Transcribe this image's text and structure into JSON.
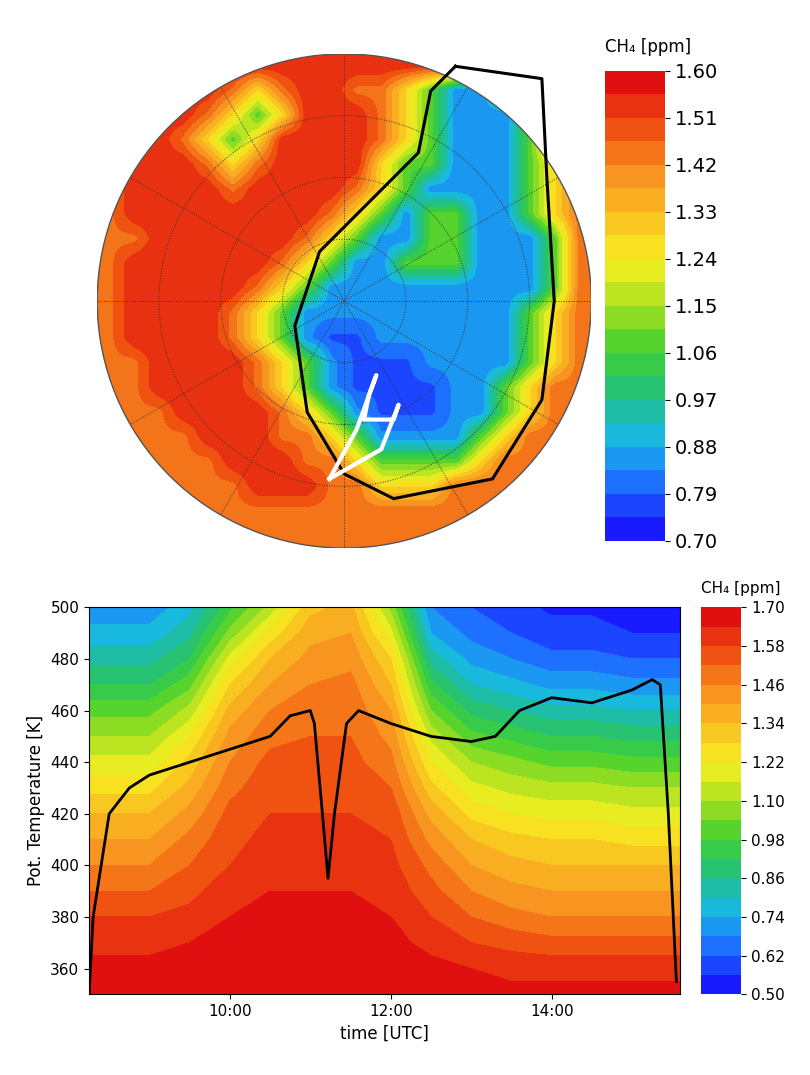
{
  "chart_data": [
    {
      "type": "map",
      "colorbar_label": "CH₄ [ppm]",
      "tick_labels": false,
      "xlim": [
        -1,
        1
      ],
      "ylim": [
        -1,
        1
      ],
      "clim": [
        0.7,
        1.6
      ],
      "cticks": [
        {
          "value": 1.6,
          "label": "1.60"
        },
        1.51,
        1.42,
        1.33,
        1.24,
        1.15,
        1.06,
        0.97,
        0.88,
        0.79,
        {
          "value": 0.7,
          "label": "0.70"
        }
      ],
      "cells": [
        [
          1.55,
          1.55,
          1.55,
          1.55,
          1.55,
          1.55,
          1.55,
          1.55,
          1.55,
          1.55,
          1.55,
          1.55,
          1.55,
          1.55,
          1.55,
          1.55,
          1.55,
          1.55,
          1.55,
          1.55
        ],
        [
          1.55,
          1.55,
          1.55,
          1.55,
          1.55,
          1.45,
          1.28,
          1.45,
          1.55,
          1.55,
          1.45,
          1.45,
          1.28,
          1.08,
          0.85,
          0.85,
          1.08,
          1.28,
          1.45,
          1.55
        ],
        [
          1.55,
          1.55,
          1.55,
          1.55,
          1.45,
          1.28,
          1.08,
          1.28,
          1.55,
          1.55,
          1.55,
          1.45,
          1.28,
          1.08,
          0.85,
          0.85,
          0.85,
          1.08,
          1.45,
          1.55
        ],
        [
          1.55,
          1.55,
          1.55,
          1.45,
          1.28,
          1.08,
          1.28,
          1.55,
          1.55,
          1.55,
          1.55,
          1.45,
          1.28,
          1.08,
          0.85,
          0.85,
          0.85,
          1.08,
          1.45,
          1.45
        ],
        [
          1.45,
          1.55,
          1.55,
          1.55,
          1.45,
          1.28,
          1.45,
          1.55,
          1.55,
          1.55,
          1.55,
          1.28,
          1.08,
          1.08,
          0.85,
          0.85,
          0.85,
          1.08,
          1.28,
          1.45
        ],
        [
          1.45,
          1.55,
          1.55,
          1.55,
          1.55,
          1.45,
          1.55,
          1.55,
          1.55,
          1.55,
          1.45,
          1.28,
          1.08,
          0.85,
          0.85,
          0.85,
          0.85,
          1.08,
          1.28,
          1.45
        ],
        [
          1.45,
          1.55,
          1.55,
          1.55,
          1.55,
          1.55,
          1.55,
          1.55,
          1.55,
          1.45,
          1.28,
          1.08,
          0.85,
          1.08,
          1.08,
          0.85,
          0.85,
          1.08,
          1.28,
          1.45
        ],
        [
          1.45,
          1.45,
          1.55,
          1.55,
          1.55,
          1.55,
          1.55,
          1.55,
          1.45,
          1.28,
          1.08,
          0.85,
          0.85,
          1.08,
          1.08,
          0.85,
          0.85,
          0.85,
          1.08,
          1.45
        ],
        [
          1.45,
          1.55,
          1.55,
          1.55,
          1.55,
          1.55,
          1.55,
          1.45,
          1.28,
          1.08,
          0.85,
          0.85,
          1.08,
          1.08,
          1.08,
          0.85,
          0.85,
          0.85,
          1.08,
          1.45
        ],
        [
          1.45,
          1.55,
          1.55,
          1.55,
          1.55,
          1.55,
          1.45,
          1.28,
          1.08,
          0.85,
          0.85,
          0.85,
          0.85,
          0.85,
          0.85,
          0.85,
          0.85,
          0.85,
          1.08,
          1.45
        ],
        [
          1.45,
          1.55,
          1.55,
          1.55,
          1.55,
          1.45,
          1.28,
          1.08,
          0.85,
          0.85,
          0.85,
          0.85,
          0.85,
          0.85,
          0.85,
          0.85,
          0.85,
          1.08,
          1.28,
          1.45
        ],
        [
          1.45,
          1.55,
          1.55,
          1.55,
          1.55,
          1.45,
          1.28,
          1.08,
          0.85,
          0.78,
          0.78,
          0.85,
          0.85,
          0.85,
          0.85,
          0.85,
          0.85,
          1.08,
          1.28,
          1.45
        ],
        [
          1.45,
          1.45,
          1.55,
          1.55,
          1.55,
          1.55,
          1.45,
          1.28,
          1.08,
          0.85,
          0.78,
          0.78,
          0.78,
          0.85,
          0.85,
          0.85,
          0.85,
          1.08,
          1.28,
          1.45
        ],
        [
          1.45,
          1.45,
          1.55,
          1.55,
          1.55,
          1.55,
          1.45,
          1.28,
          1.08,
          0.85,
          0.78,
          0.78,
          0.78,
          0.78,
          0.85,
          0.85,
          1.08,
          1.28,
          1.45,
          1.45
        ],
        [
          1.45,
          1.45,
          1.45,
          1.55,
          1.55,
          1.55,
          1.55,
          1.45,
          1.28,
          1.08,
          0.85,
          0.78,
          0.78,
          0.78,
          0.85,
          0.85,
          1.08,
          1.28,
          1.45,
          1.45
        ],
        [
          1.45,
          1.45,
          1.45,
          1.45,
          1.55,
          1.55,
          1.55,
          1.45,
          1.45,
          1.28,
          1.08,
          0.85,
          0.85,
          0.85,
          0.85,
          1.08,
          1.28,
          1.45,
          1.45,
          1.45
        ],
        [
          1.45,
          1.45,
          1.45,
          1.45,
          1.45,
          1.55,
          1.55,
          1.55,
          1.45,
          1.45,
          1.28,
          1.08,
          1.08,
          1.08,
          1.08,
          1.28,
          1.45,
          1.45,
          1.45,
          1.45
        ],
        [
          1.45,
          1.45,
          1.45,
          1.45,
          1.45,
          1.45,
          1.55,
          1.55,
          1.55,
          1.45,
          1.45,
          1.28,
          1.28,
          1.28,
          1.45,
          1.45,
          1.45,
          1.45,
          1.45,
          1.45
        ],
        [
          1.45,
          1.45,
          1.45,
          1.45,
          1.45,
          1.45,
          1.45,
          1.45,
          1.45,
          1.45,
          1.45,
          1.45,
          1.45,
          1.45,
          1.45,
          1.45,
          1.45,
          1.45,
          1.45,
          1.45
        ],
        [
          1.45,
          1.45,
          1.45,
          1.45,
          1.45,
          1.45,
          1.45,
          1.45,
          1.45,
          1.45,
          1.45,
          1.45,
          1.45,
          1.45,
          1.45,
          1.45,
          1.45,
          1.45,
          1.45,
          1.45
        ]
      ],
      "vortex_edge": {
        "x": [
          0.45,
          0.8,
          0.82,
          0.85,
          0.8,
          0.6,
          0.2,
          0.0,
          -0.15,
          -0.2,
          -0.1,
          0.1,
          0.3,
          0.35,
          0.45
        ],
        "y": [
          0.95,
          0.9,
          0.5,
          0.0,
          -0.4,
          -0.72,
          -0.8,
          -0.7,
          -0.45,
          -0.1,
          0.2,
          0.4,
          0.6,
          0.85,
          0.95
        ]
      },
      "flight_track": {
        "x": [
          -0.06,
          0.05,
          0.13,
          0.1,
          0.08,
          0.2,
          0.22,
          0.15,
          -0.06
        ],
        "y": [
          -0.72,
          -0.52,
          -0.3,
          -0.38,
          -0.48,
          -0.48,
          -0.42,
          -0.6,
          -0.72
        ]
      }
    },
    {
      "type": "heatmap",
      "xlabel": "time [UTC]",
      "ylabel": "Pot. Temperature [K]",
      "colorbar_label": "CH₄ [ppm]",
      "xlim": [
        8.25,
        15.6
      ],
      "ylim": [
        350,
        500
      ],
      "xticks": [
        {
          "value": 10,
          "label": "10:00"
        },
        {
          "value": 12,
          "label": "12:00"
        },
        {
          "value": 14,
          "label": "14:00"
        }
      ],
      "yticks": [
        360,
        380,
        400,
        420,
        440,
        460,
        480,
        500
      ],
      "clim": [
        0.5,
        1.7
      ],
      "cticks": [
        {
          "value": 0.5,
          "label": "0.50"
        },
        0.62,
        0.74,
        0.86,
        0.98,
        {
          "value": 1.1,
          "label": "1.10"
        },
        1.22,
        1.34,
        1.46,
        1.58,
        {
          "value": 1.7,
          "label": "1.70"
        }
      ],
      "x": [
        8.25,
        9.0,
        9.5,
        10.0,
        10.5,
        11.0,
        11.5,
        12.0,
        12.5,
        13.0,
        13.5,
        14.0,
        14.5,
        15.0,
        15.6
      ],
      "y": [
        350,
        360,
        370,
        380,
        390,
        400,
        410,
        420,
        430,
        440,
        450,
        460,
        470,
        480,
        490,
        500
      ],
      "cells_by_x": [
        [
          1.68,
          1.66,
          1.62,
          1.58,
          1.52,
          1.46,
          1.4,
          1.34,
          1.26,
          1.18,
          1.1,
          1.02,
          0.92,
          0.84,
          0.76,
          0.7
        ],
        [
          1.68,
          1.66,
          1.62,
          1.58,
          1.52,
          1.46,
          1.4,
          1.34,
          1.26,
          1.18,
          1.1,
          1.02,
          0.92,
          0.84,
          0.76,
          0.7
        ],
        [
          1.68,
          1.66,
          1.64,
          1.6,
          1.56,
          1.52,
          1.48,
          1.42,
          1.36,
          1.3,
          1.22,
          1.12,
          1.02,
          0.92,
          0.84,
          0.78
        ],
        [
          1.7,
          1.68,
          1.66,
          1.64,
          1.62,
          1.58,
          1.56,
          1.54,
          1.5,
          1.46,
          1.42,
          1.36,
          1.28,
          1.18,
          1.06,
          0.96
        ],
        [
          1.7,
          1.68,
          1.66,
          1.66,
          1.64,
          1.62,
          1.6,
          1.58,
          1.56,
          1.54,
          1.5,
          1.46,
          1.4,
          1.34,
          1.24,
          1.12
        ],
        [
          1.7,
          1.68,
          1.68,
          1.66,
          1.64,
          1.62,
          1.6,
          1.58,
          1.56,
          1.54,
          1.52,
          1.5,
          1.46,
          1.42,
          1.38,
          1.32
        ],
        [
          1.7,
          1.68,
          1.68,
          1.66,
          1.64,
          1.62,
          1.6,
          1.58,
          1.56,
          1.54,
          1.52,
          1.5,
          1.48,
          1.44,
          1.4,
          1.36
        ],
        [
          1.7,
          1.68,
          1.66,
          1.64,
          1.62,
          1.6,
          1.58,
          1.56,
          1.52,
          1.48,
          1.44,
          1.4,
          1.34,
          1.28,
          1.18,
          1.08
        ],
        [
          1.68,
          1.66,
          1.62,
          1.58,
          1.54,
          1.5,
          1.44,
          1.38,
          1.3,
          1.22,
          1.14,
          1.04,
          0.94,
          0.84,
          0.74,
          0.68
        ],
        [
          1.68,
          1.64,
          1.58,
          1.52,
          1.46,
          1.4,
          1.34,
          1.26,
          1.18,
          1.1,
          1.0,
          0.9,
          0.8,
          0.72,
          0.66,
          0.62
        ],
        [
          1.66,
          1.62,
          1.56,
          1.48,
          1.42,
          1.36,
          1.3,
          1.22,
          1.14,
          1.06,
          0.96,
          0.86,
          0.76,
          0.68,
          0.62,
          0.58
        ],
        [
          1.66,
          1.62,
          1.54,
          1.46,
          1.4,
          1.34,
          1.28,
          1.2,
          1.12,
          1.02,
          0.92,
          0.82,
          0.72,
          0.64,
          0.58,
          0.55
        ],
        [
          1.66,
          1.62,
          1.54,
          1.46,
          1.4,
          1.34,
          1.28,
          1.2,
          1.12,
          1.02,
          0.92,
          0.82,
          0.72,
          0.64,
          0.58,
          0.55
        ],
        [
          1.66,
          1.62,
          1.54,
          1.46,
          1.4,
          1.34,
          1.26,
          1.18,
          1.1,
          1.0,
          0.9,
          0.8,
          0.7,
          0.62,
          0.56,
          0.54
        ],
        [
          1.66,
          1.62,
          1.54,
          1.46,
          1.4,
          1.34,
          1.26,
          1.18,
          1.1,
          1.0,
          0.9,
          0.8,
          0.7,
          0.62,
          0.56,
          0.54
        ]
      ],
      "series": [
        {
          "type": "line",
          "color": "black",
          "x": [
            8.25,
            8.3,
            8.4,
            8.5,
            8.75,
            9.0,
            9.5,
            10.0,
            10.5,
            10.75,
            11.0,
            11.05,
            11.15,
            11.22,
            11.3,
            11.45,
            11.6,
            12.0,
            12.3,
            12.5,
            13.0,
            13.3,
            13.6,
            14.0,
            14.5,
            14.8,
            15.0,
            15.25,
            15.35,
            15.45,
            15.55
          ],
          "values": [
            350,
            380,
            400,
            420,
            430,
            435,
            440,
            445,
            450,
            458,
            460,
            455,
            420,
            395,
            420,
            455,
            460,
            455,
            452,
            450,
            448,
            450,
            460,
            465,
            463,
            466,
            468,
            472,
            470,
            420,
            355
          ]
        }
      ]
    }
  ]
}
